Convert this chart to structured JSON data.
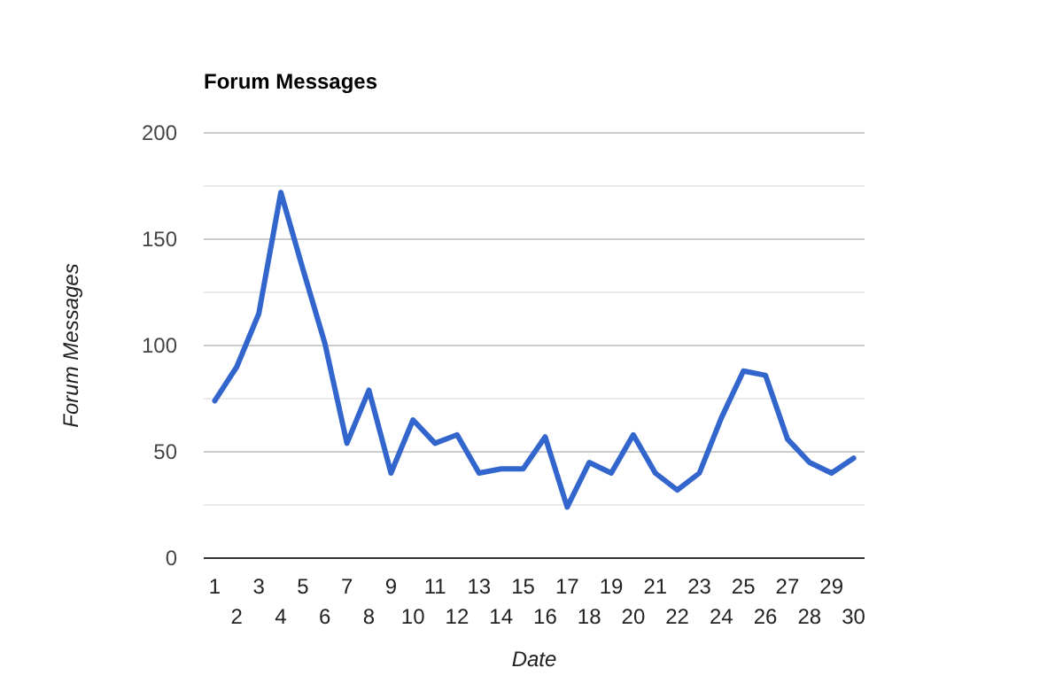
{
  "chart_data": {
    "type": "line",
    "title": "Forum Messages",
    "xlabel": "Date",
    "ylabel": "Forum Messages",
    "categories": [
      "1",
      "2",
      "3",
      "4",
      "5",
      "6",
      "7",
      "8",
      "9",
      "10",
      "11",
      "12",
      "13",
      "14",
      "15",
      "16",
      "17",
      "18",
      "19",
      "20",
      "21",
      "22",
      "23",
      "24",
      "25",
      "26",
      "27",
      "28",
      "29",
      "30"
    ],
    "series": [
      {
        "color": "#3366cc",
        "values": [
          74,
          90,
          115,
          172,
          136,
          101,
          54,
          79,
          40,
          65,
          54,
          58,
          40,
          42,
          42,
          57,
          24,
          45,
          40,
          58,
          40,
          32,
          40,
          66,
          88,
          86,
          56,
          45,
          40,
          47
        ]
      }
    ],
    "ylim": [
      0,
      200
    ],
    "yticks": [
      0,
      {
        "value": 25,
        "label": null
      },
      50,
      {
        "value": 75,
        "label": null
      },
      100,
      {
        "value": 125,
        "label": null
      },
      150,
      {
        "value": 175,
        "label": null
      },
      200
    ],
    "grid": true,
    "marker": "none",
    "line_style": "solid"
  }
}
